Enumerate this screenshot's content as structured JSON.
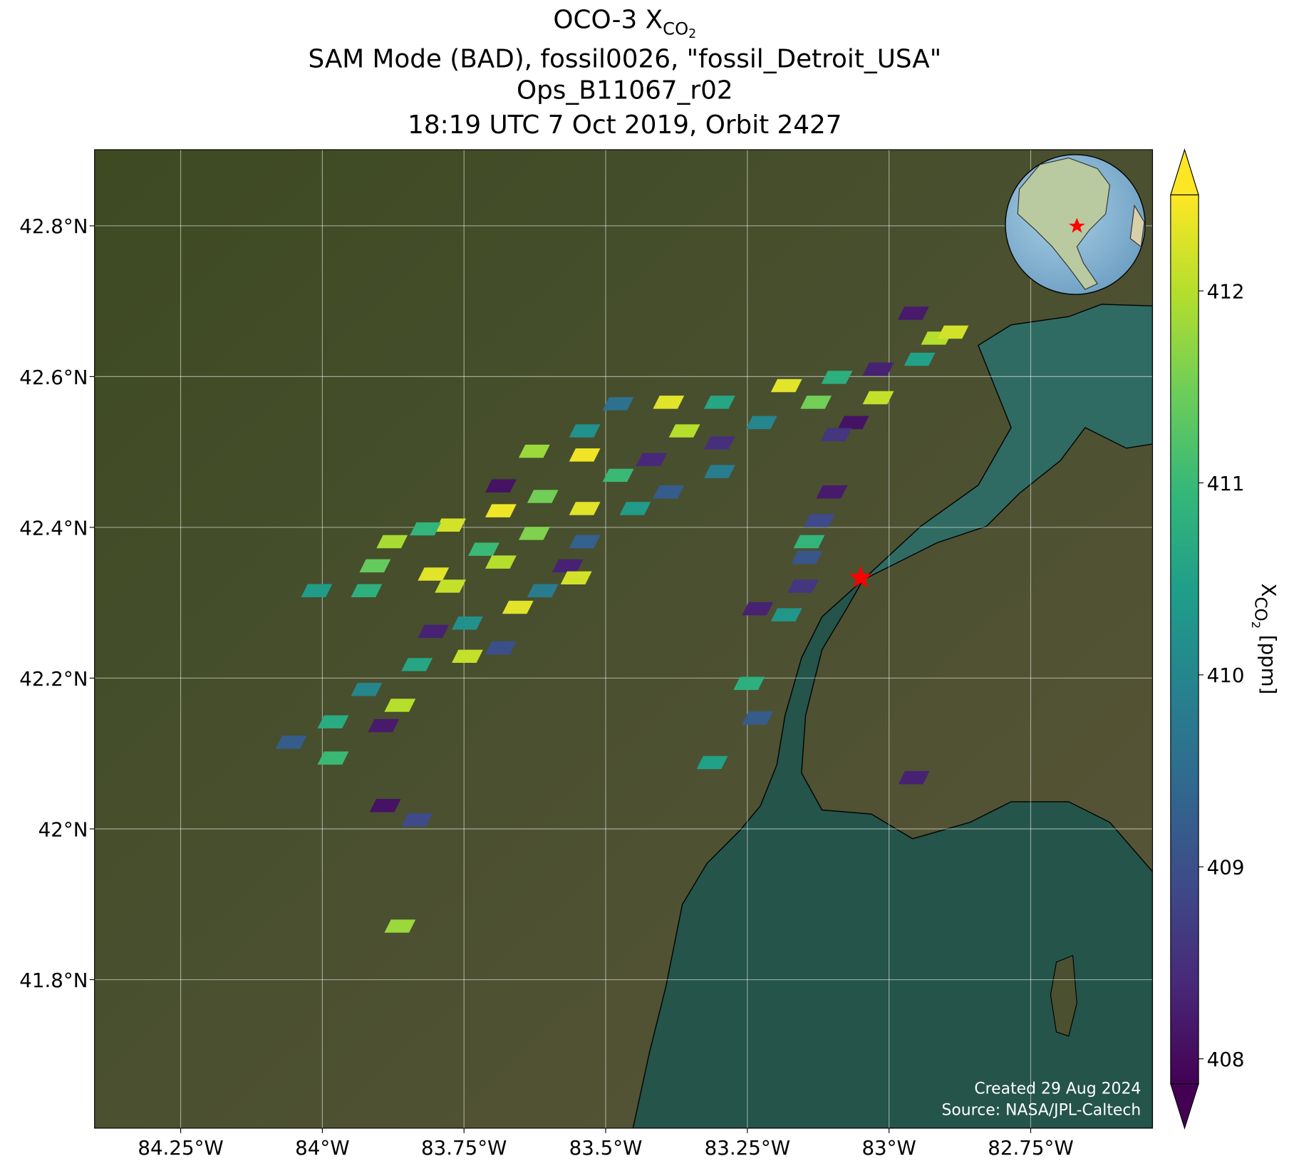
{
  "title": {
    "line1": {
      "main": "OCO-3 X",
      "sub": "CO",
      "subsub": "2"
    },
    "line2": "SAM Mode (BAD), fossil0026, \"fossil_Detroit_USA\"",
    "line3": "Ops_B11067_r02",
    "line4": "18:19 UTC 7 Oct 2019, Orbit 2427"
  },
  "map": {
    "xlim": [
      -84.402,
      -82.535
    ],
    "ylim": [
      41.603,
      42.901
    ],
    "xticks": [
      {
        "value": -84.25,
        "label": "84.25°W"
      },
      {
        "value": -84.0,
        "label": "84°W"
      },
      {
        "value": -83.75,
        "label": "83.75°W"
      },
      {
        "value": -83.5,
        "label": "83.5°W"
      },
      {
        "value": -83.25,
        "label": "83.25°W"
      },
      {
        "value": -83.0,
        "label": "83°W"
      },
      {
        "value": -82.75,
        "label": "82.75°W"
      }
    ],
    "yticks": [
      {
        "value": 41.8,
        "label": "41.8°N"
      },
      {
        "value": 42.0,
        "label": "42°N"
      },
      {
        "value": 42.2,
        "label": "42.2°N"
      },
      {
        "value": 42.4,
        "label": "42.4°N"
      },
      {
        "value": 42.6,
        "label": "42.6°N"
      },
      {
        "value": 42.8,
        "label": "42.8°N"
      }
    ],
    "grid": true,
    "site": {
      "lon": -83.05,
      "lat": 42.333,
      "color": "#ff0000"
    },
    "soundings": {
      "lon": [
        -82.957,
        -82.916,
        -82.946,
        -82.887,
        -83.019,
        -83.092,
        -83.181,
        -83.129,
        -83.019,
        -83.063,
        -83.225,
        -83.299,
        -83.478,
        -83.389,
        -83.299,
        -83.537,
        -83.361,
        -83.626,
        -83.537,
        -83.419,
        -83.299,
        -83.478,
        -83.389,
        -83.685,
        -83.611,
        -83.537,
        -83.448,
        -83.685,
        -83.774,
        -83.818,
        -83.877,
        -83.537,
        -83.626,
        -83.715,
        -83.907,
        -83.804,
        -83.685,
        -83.567,
        -84.01,
        -83.922,
        -83.774,
        -83.611,
        -83.552,
        -83.655,
        -83.744,
        -83.804,
        -83.744,
        -83.685,
        -83.833,
        -83.922,
        -83.863,
        -83.981,
        -83.892,
        -84.055,
        -83.981,
        -83.101,
        -83.123,
        -83.141,
        -83.145,
        -83.152,
        -83.181,
        -83.232,
        -83.247,
        -83.232,
        -83.312,
        -82.956,
        -83.889,
        -83.833,
        -83.863,
        -83.093
      ],
      "lat": [
        42.684,
        42.651,
        42.623,
        42.659,
        42.61,
        42.599,
        42.588,
        42.566,
        42.572,
        42.539,
        42.539,
        42.512,
        42.564,
        42.566,
        42.566,
        42.528,
        42.528,
        42.501,
        42.496,
        42.49,
        42.474,
        42.469,
        42.447,
        42.455,
        42.441,
        42.425,
        42.425,
        42.422,
        42.403,
        42.398,
        42.381,
        42.381,
        42.392,
        42.371,
        42.349,
        42.338,
        42.354,
        42.349,
        42.316,
        42.316,
        42.322,
        42.316,
        42.333,
        42.294,
        42.273,
        42.262,
        42.229,
        42.24,
        42.218,
        42.185,
        42.164,
        42.142,
        42.137,
        42.115,
        42.094,
        42.447,
        42.409,
        42.381,
        42.36,
        42.322,
        42.284,
        42.292,
        42.193,
        42.147,
        42.088,
        42.068,
        42.031,
        42.012,
        41.871,
        42.523
      ],
      "xco2": [
        408.2,
        412,
        410.5,
        412.2,
        408.3,
        410.8,
        412.3,
        411.5,
        412.1,
        408.1,
        410,
        408.5,
        409.6,
        412.3,
        410.6,
        410.2,
        412,
        411.8,
        412.4,
        408.4,
        409.8,
        411,
        409.2,
        408.1,
        411.5,
        412.3,
        410.4,
        412.4,
        412.2,
        410.9,
        411.9,
        409.3,
        411.6,
        411,
        411.4,
        412.3,
        412,
        408.3,
        410.4,
        410.8,
        412.1,
        409.8,
        412.2,
        412.3,
        410.2,
        408.3,
        412.1,
        409,
        410.6,
        410,
        412,
        410.7,
        408.2,
        409.2,
        411,
        408.2,
        408.9,
        410.9,
        409.1,
        408.6,
        410.3,
        408.3,
        410.8,
        409.2,
        410.5,
        408.3,
        408.1,
        408.9,
        411.8,
        408.6
      ]
    },
    "credit1": "Created 29 Aug 2024",
    "credit2": "Source: NASA/JPL-Caltech"
  },
  "colorbar": {
    "colormap": "viridis",
    "clim": [
      407.87,
      412.5
    ],
    "ticks": [
      408,
      409,
      410,
      411,
      412
    ],
    "label": {
      "main": "X",
      "sub": "CO",
      "subsub": "2",
      "unit": " [ppm]"
    }
  }
}
